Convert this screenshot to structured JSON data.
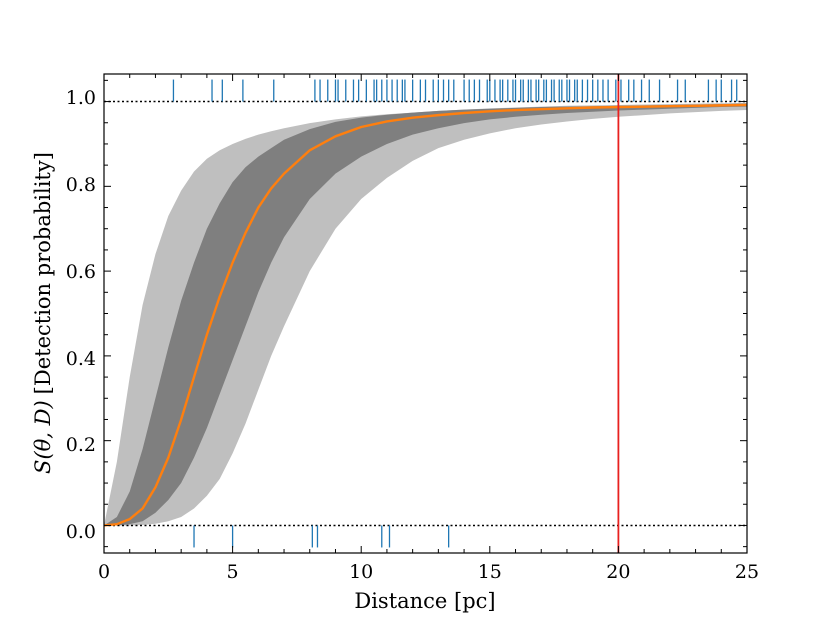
{
  "chart_data": {
    "type": "line",
    "title": "",
    "xlabel": "Distance [pc]",
    "ylabel": "S(θ, D) [Detection probability]",
    "ylabel_math": "S(θ, D)",
    "ylabel_text": "[Detection probability]",
    "xlim": [
      0,
      25
    ],
    "ylim": [
      -0.065,
      1.065
    ],
    "x_ticks": [
      0,
      5,
      10,
      15,
      20,
      25
    ],
    "x_tick_labels": [
      "0",
      "5",
      "10",
      "15",
      "20",
      "25"
    ],
    "y_ticks": [
      0.0,
      0.2,
      0.4,
      0.6,
      0.8,
      1.0
    ],
    "y_tick_labels": [
      "0.0",
      "0.2",
      "0.4",
      "0.6",
      "0.8",
      "1.0"
    ],
    "grid": false,
    "reference_lines": [
      {
        "orientation": "horizontal",
        "y": 1.0,
        "style": "dotted",
        "color": "#000000"
      },
      {
        "orientation": "horizontal",
        "y": 0.0,
        "style": "dotted",
        "color": "#000000"
      },
      {
        "orientation": "vertical",
        "x": 20,
        "style": "solid",
        "color": "#e8201f"
      }
    ],
    "series": [
      {
        "name": "median",
        "color": "#ff7f0e",
        "x": [
          0,
          0.5,
          1,
          1.5,
          2,
          2.5,
          3,
          3.5,
          4,
          4.5,
          5,
          5.5,
          6,
          6.5,
          7,
          8,
          9,
          10,
          11,
          12,
          13,
          14,
          15,
          16,
          17,
          18,
          19,
          20,
          21,
          22,
          23,
          24,
          25
        ],
        "y": [
          0.0,
          0.003,
          0.015,
          0.04,
          0.09,
          0.16,
          0.25,
          0.35,
          0.45,
          0.54,
          0.62,
          0.69,
          0.75,
          0.795,
          0.83,
          0.885,
          0.918,
          0.94,
          0.953,
          0.962,
          0.968,
          0.973,
          0.977,
          0.98,
          0.982,
          0.984,
          0.986,
          0.987,
          0.988,
          0.989,
          0.99,
          0.991,
          0.992
        ]
      },
      {
        "name": "band_inner_upper",
        "color": "#7f7f7f",
        "x": [
          0,
          0.5,
          1,
          1.5,
          2,
          2.5,
          3,
          3.5,
          4,
          4.5,
          5,
          5.5,
          6,
          6.5,
          7,
          8,
          9,
          10,
          11,
          12,
          13,
          14,
          15,
          16,
          17,
          18,
          19,
          20,
          21,
          22,
          23,
          24,
          25
        ],
        "y": [
          0.0,
          0.02,
          0.08,
          0.18,
          0.3,
          0.42,
          0.53,
          0.62,
          0.7,
          0.76,
          0.81,
          0.845,
          0.87,
          0.89,
          0.91,
          0.935,
          0.952,
          0.962,
          0.969,
          0.974,
          0.978,
          0.981,
          0.983,
          0.985,
          0.987,
          0.988,
          0.989,
          0.99,
          0.991,
          0.992,
          0.993,
          0.994,
          0.995
        ]
      },
      {
        "name": "band_inner_lower",
        "color": "#7f7f7f",
        "x": [
          0,
          0.5,
          1,
          1.5,
          2,
          2.5,
          3,
          3.5,
          4,
          4.5,
          5,
          5.5,
          6,
          6.5,
          7,
          8,
          9,
          10,
          11,
          12,
          13,
          14,
          15,
          16,
          17,
          18,
          19,
          20,
          21,
          22,
          23,
          24,
          25
        ],
        "y": [
          0.0,
          0.0,
          0.003,
          0.01,
          0.03,
          0.06,
          0.1,
          0.16,
          0.23,
          0.31,
          0.39,
          0.47,
          0.55,
          0.62,
          0.68,
          0.77,
          0.83,
          0.87,
          0.9,
          0.922,
          0.937,
          0.949,
          0.958,
          0.964,
          0.969,
          0.973,
          0.976,
          0.979,
          0.981,
          0.983,
          0.985,
          0.987,
          0.988
        ]
      },
      {
        "name": "band_outer_upper",
        "color": "#bfbfbf",
        "x": [
          0,
          0.5,
          1,
          1.5,
          2,
          2.5,
          3,
          3.5,
          4,
          4.5,
          5,
          5.5,
          6,
          6.5,
          7,
          8,
          9,
          10,
          11,
          12,
          13,
          14,
          15,
          16,
          17,
          18,
          19,
          20,
          21,
          22,
          23,
          24,
          25
        ],
        "y": [
          0.0,
          0.15,
          0.35,
          0.52,
          0.64,
          0.73,
          0.79,
          0.835,
          0.865,
          0.885,
          0.9,
          0.912,
          0.922,
          0.93,
          0.937,
          0.949,
          0.958,
          0.965,
          0.97,
          0.974,
          0.978,
          0.981,
          0.984,
          0.986,
          0.988,
          0.99,
          0.991,
          0.992,
          0.993,
          0.994,
          0.995,
          0.996,
          0.997
        ]
      },
      {
        "name": "band_outer_lower",
        "color": "#bfbfbf",
        "x": [
          0,
          0.5,
          1,
          1.5,
          2,
          2.5,
          3,
          3.5,
          4,
          4.5,
          5,
          5.5,
          6,
          6.5,
          7,
          8,
          9,
          10,
          11,
          12,
          13,
          14,
          15,
          16,
          17,
          18,
          19,
          20,
          21,
          22,
          23,
          24,
          25
        ],
        "y": [
          0.0,
          0.0,
          0.0,
          0.001,
          0.004,
          0.01,
          0.02,
          0.04,
          0.07,
          0.11,
          0.17,
          0.24,
          0.32,
          0.4,
          0.47,
          0.6,
          0.7,
          0.77,
          0.82,
          0.86,
          0.89,
          0.91,
          0.925,
          0.937,
          0.946,
          0.953,
          0.959,
          0.964,
          0.968,
          0.972,
          0.975,
          0.978,
          0.98
        ]
      }
    ],
    "rug_detected": {
      "color": "#1f77b4",
      "y": 1.0,
      "x": [
        2.7,
        4.2,
        4.6,
        5.4,
        6.6,
        8.2,
        8.4,
        8.7,
        9.0,
        9.1,
        9.4,
        9.7,
        9.9,
        10.2,
        10.5,
        10.6,
        10.8,
        11.0,
        11.2,
        11.4,
        11.6,
        11.7,
        12.0,
        12.3,
        12.5,
        12.8,
        13.0,
        13.2,
        13.4,
        13.6,
        14.0,
        14.2,
        14.4,
        14.6,
        14.9,
        15.0,
        15.2,
        15.4,
        15.5,
        15.7,
        15.9,
        16.0,
        16.2,
        16.3,
        16.5,
        16.6,
        16.8,
        16.9,
        17.1,
        17.2,
        17.4,
        17.5,
        17.7,
        17.8,
        18.0,
        18.1,
        18.3,
        18.4,
        18.6,
        18.8,
        19.0,
        19.2,
        19.4,
        19.6,
        19.9,
        20.1,
        20.4,
        20.6,
        20.9,
        21.2,
        21.6,
        22.3,
        22.6,
        23.5,
        23.8,
        24.0,
        24.4,
        24.6
      ]
    },
    "rug_nondetected": {
      "color": "#1f77b4",
      "y": 0.0,
      "x": [
        3.5,
        5.0,
        8.1,
        8.3,
        10.8,
        11.1,
        13.4
      ]
    }
  }
}
